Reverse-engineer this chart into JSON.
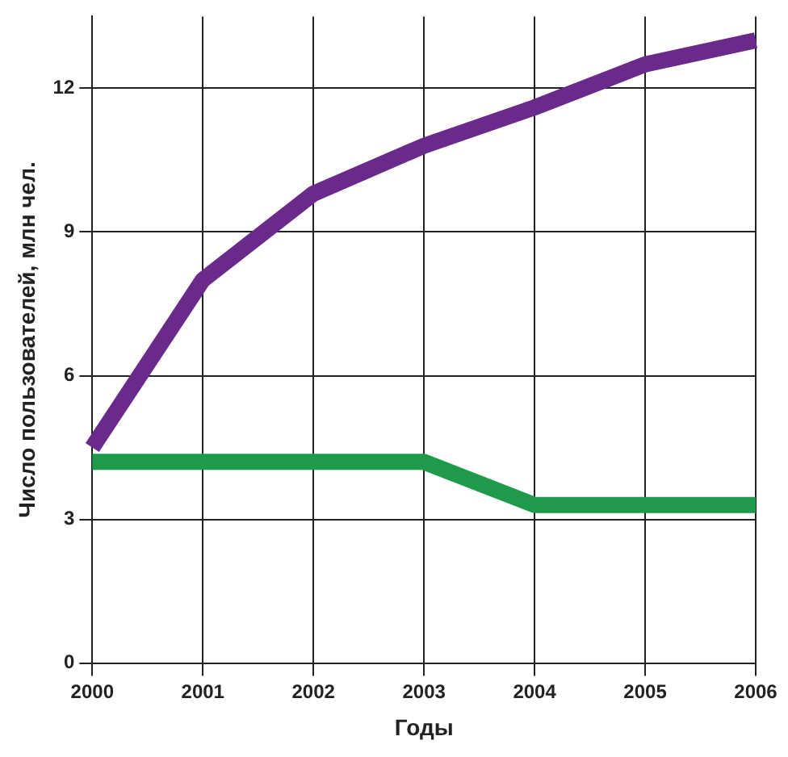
{
  "chart_data": {
    "type": "line",
    "xlabel": "Годы",
    "ylabel": "Число пользователей, млн чел.",
    "categories": [
      "2000",
      "2001",
      "2002",
      "2003",
      "2004",
      "2005",
      "2006"
    ],
    "series": [
      {
        "color": "#6a2a8c",
        "values": [
          4.5,
          8,
          9.8,
          10.8,
          11.6,
          12.5,
          13
        ]
      },
      {
        "color": "#1f9a4a",
        "values": [
          4.2,
          4.2,
          4.2,
          4.2,
          3.3,
          3.3,
          3.3
        ]
      }
    ],
    "ylim": [
      0,
      13.5
    ],
    "yticks": [
      0,
      3,
      6,
      9,
      12
    ],
    "grid": true,
    "legend": false,
    "marker": "none",
    "line_style": "solid"
  }
}
